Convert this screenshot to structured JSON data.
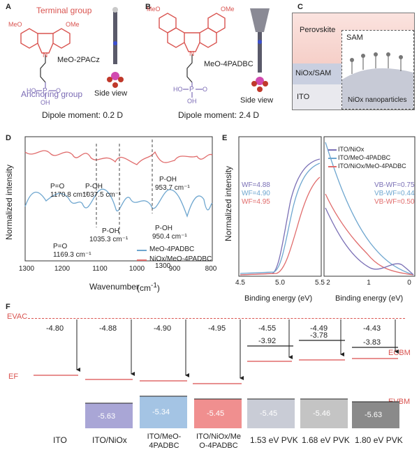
{
  "panelA": {
    "letter": "A",
    "terminal_group": "Terminal group",
    "anchoring_group": "Anchoring group",
    "molecule": "MeO-2PACz",
    "side_view": "Side view",
    "dipole": "Dipole moment: 0.2 D",
    "atoms": {
      "meo": "MeO",
      "ome": "OMe",
      "n": "N",
      "p": "P",
      "o": "O",
      "ho": "HO",
      "oh": "OH"
    }
  },
  "panelB": {
    "letter": "B",
    "molecule": "MeO-4PADBC",
    "side_view": "Side view",
    "dipole": "Dipole moment: 2.4 D",
    "atoms": {
      "meo": "MeO",
      "ome": "OMe",
      "n": "N",
      "p": "P",
      "o": "O",
      "ho": "HO",
      "oh": "OH"
    }
  },
  "panelC": {
    "letter": "C",
    "perovskite": "Perovskite",
    "sam": "SAM",
    "nio_sam": "NiOx/SAM",
    "ito": "ITO",
    "nanoparticles": "NiOx nanoparticles"
  },
  "panelD": {
    "letter": "D",
    "ylabel": "Normalized intensity",
    "xlabel": "Wavenumber",
    "xticks": [
      "1300",
      "1200",
      "1100",
      "1000",
      "900",
      "800"
    ],
    "peaks_top": [
      {
        "name": "P=O",
        "value": "1170.8 cm⁻¹"
      },
      {
        "name": "P-OH",
        "value": "1037.5 cm⁻¹"
      },
      {
        "name": "P-OH",
        "value": "953.7 cm⁻¹"
      }
    ],
    "peaks_bottom": [
      {
        "name": "P=O",
        "value": "1169.3 cm⁻¹"
      },
      {
        "name": "P-OH",
        "value": "1035.3 cm⁻¹"
      },
      {
        "name": "P-OH",
        "value": "950.4 cm⁻¹"
      }
    ],
    "legend": [
      "MeO-4PADBC",
      "NiOx/MeO-4PADBC"
    ],
    "colors": {
      "blue": "#6ea6cf",
      "red": "#e06b6b"
    }
  },
  "panelE": {
    "letter": "E",
    "ylabel": "Normalized intensity",
    "xlabel": "Binding energy (eV)",
    "left_xticks": [
      "4.5",
      "5.0",
      "5.5"
    ],
    "right_xticks": [
      "2",
      "1",
      "0"
    ],
    "wf": [
      "WF=4.88",
      "WF=4.90",
      "WF=4.95"
    ],
    "vbwf": [
      "VB-WF=0.75",
      "VB-WF=0.44",
      "VB-WF=0.50"
    ],
    "legend": [
      "ITO/NiOx",
      "ITO/MeO-4PADBC",
      "ITO/NiOx/MeO-4PADBC"
    ],
    "colors": {
      "purple": "#7a6fb5",
      "blue": "#6ea6cf",
      "red": "#e06b6b"
    }
  },
  "panelF": {
    "letter": "F",
    "evac": "EVAC",
    "ef": "EF",
    "ecbm": "ECBM",
    "evbm": "EVBM",
    "columns": [
      {
        "label": "ITO",
        "wf": "-4.80",
        "cbm": "",
        "vbm": ""
      },
      {
        "label": "ITO/NiOx",
        "wf": "-4.88",
        "cbm": "",
        "vbm": "-5.63"
      },
      {
        "label": "ITO/MeO-4PADBC",
        "wf": "-4.90",
        "cbm": "",
        "vbm": "-5.34"
      },
      {
        "label": "ITO/NiOx/MeO-4PADBC",
        "wf": "-4.95",
        "cbm": "",
        "vbm": "-5.45"
      },
      {
        "label": "1.53 eV PVK",
        "wf": "-4.55",
        "cbm": "-3.92",
        "vbm": "-5.45"
      },
      {
        "label": "1.68 eV PVK",
        "wf": "-4.49",
        "cbm": "-3.78",
        "vbm": "-5.46"
      },
      {
        "label": "1.80 eV PVK",
        "wf": "-4.43",
        "cbm": "-3.83",
        "vbm": "-5.63"
      }
    ],
    "vbm_colors": [
      "",
      "#a9a6d6",
      "#a4c4e4",
      "#f08f8f",
      "#c9ccd6",
      "#c4c4c4",
      "#8a8a8a"
    ]
  }
}
